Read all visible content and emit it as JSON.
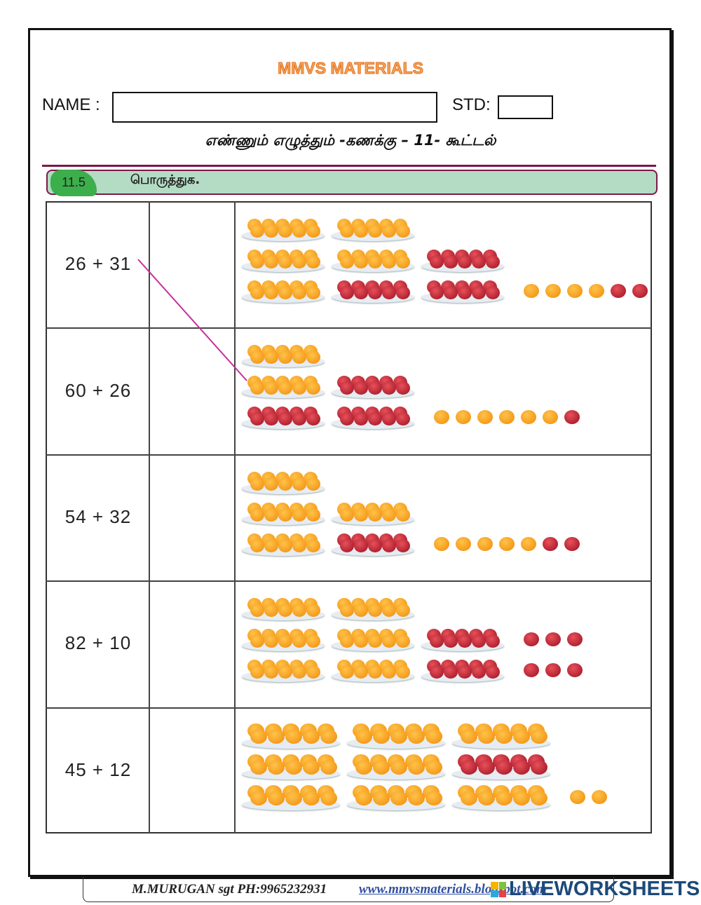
{
  "header": {
    "brand": "MMVS MATERIALS",
    "name_label": "NAME :",
    "name_value": "",
    "std_label": "STD:",
    "std_value": "",
    "subtitle": "எண்ணும் எழுத்தும் -கணக்கு – 11- கூட்டல்"
  },
  "section": {
    "number": "11.5",
    "instruction": "பொருத்துக."
  },
  "rows": [
    {
      "sum": "26 + 31",
      "lines": [
        [
          "o",
          "o"
        ],
        [
          "o",
          "o",
          "a"
        ],
        [
          "o",
          "a",
          "a",
          {
            "loose": [
              "o",
              "o",
              "o",
              "o",
              "a",
              "a"
            ]
          }
        ]
      ]
    },
    {
      "sum": "60 + 26",
      "lines": [
        [
          "o"
        ],
        [
          "o",
          "a"
        ],
        [
          "a",
          "a",
          {
            "loose": [
              "o",
              "o",
              "o",
              "o",
              "o",
              "o",
              "a"
            ]
          }
        ]
      ]
    },
    {
      "sum": "54 + 32",
      "lines": [
        [
          "o"
        ],
        [
          "o",
          "o"
        ],
        [
          "o",
          "a",
          {
            "loose": [
              "o",
              "o",
              "o",
              "o",
              "o",
              "a",
              "a"
            ]
          }
        ]
      ]
    },
    {
      "sum": "82 + 10",
      "lines": [
        [
          "o",
          "o"
        ],
        [
          "o",
          "o",
          "a",
          {
            "loose": [
              "a",
              "a",
              "a"
            ]
          }
        ],
        [
          "o",
          "o",
          "a",
          {
            "loose": [
              "a",
              "a",
              "a"
            ]
          }
        ]
      ]
    },
    {
      "sum": "45 + 12",
      "lines": [
        [
          "o",
          "o",
          "o"
        ],
        [
          "o",
          "o",
          "a"
        ],
        [
          "o",
          "o",
          "o",
          {
            "loose": [
              "o",
              "o"
            ]
          }
        ]
      ]
    }
  ],
  "match_line": {
    "from": "26 + 31",
    "to_row": 2,
    "color": "#c8309a"
  },
  "colors": {
    "orange": "#f39a16",
    "apple": "#b11c2c",
    "banner": "#b4dcc4",
    "badge": "#3cae4c"
  },
  "footer": {
    "author": "M.MURUGAN sgt  PH:9965232931",
    "link": "www.mmvsmaterials.blogspot.com",
    "watermark": "LIVEWORKSHEETS"
  }
}
